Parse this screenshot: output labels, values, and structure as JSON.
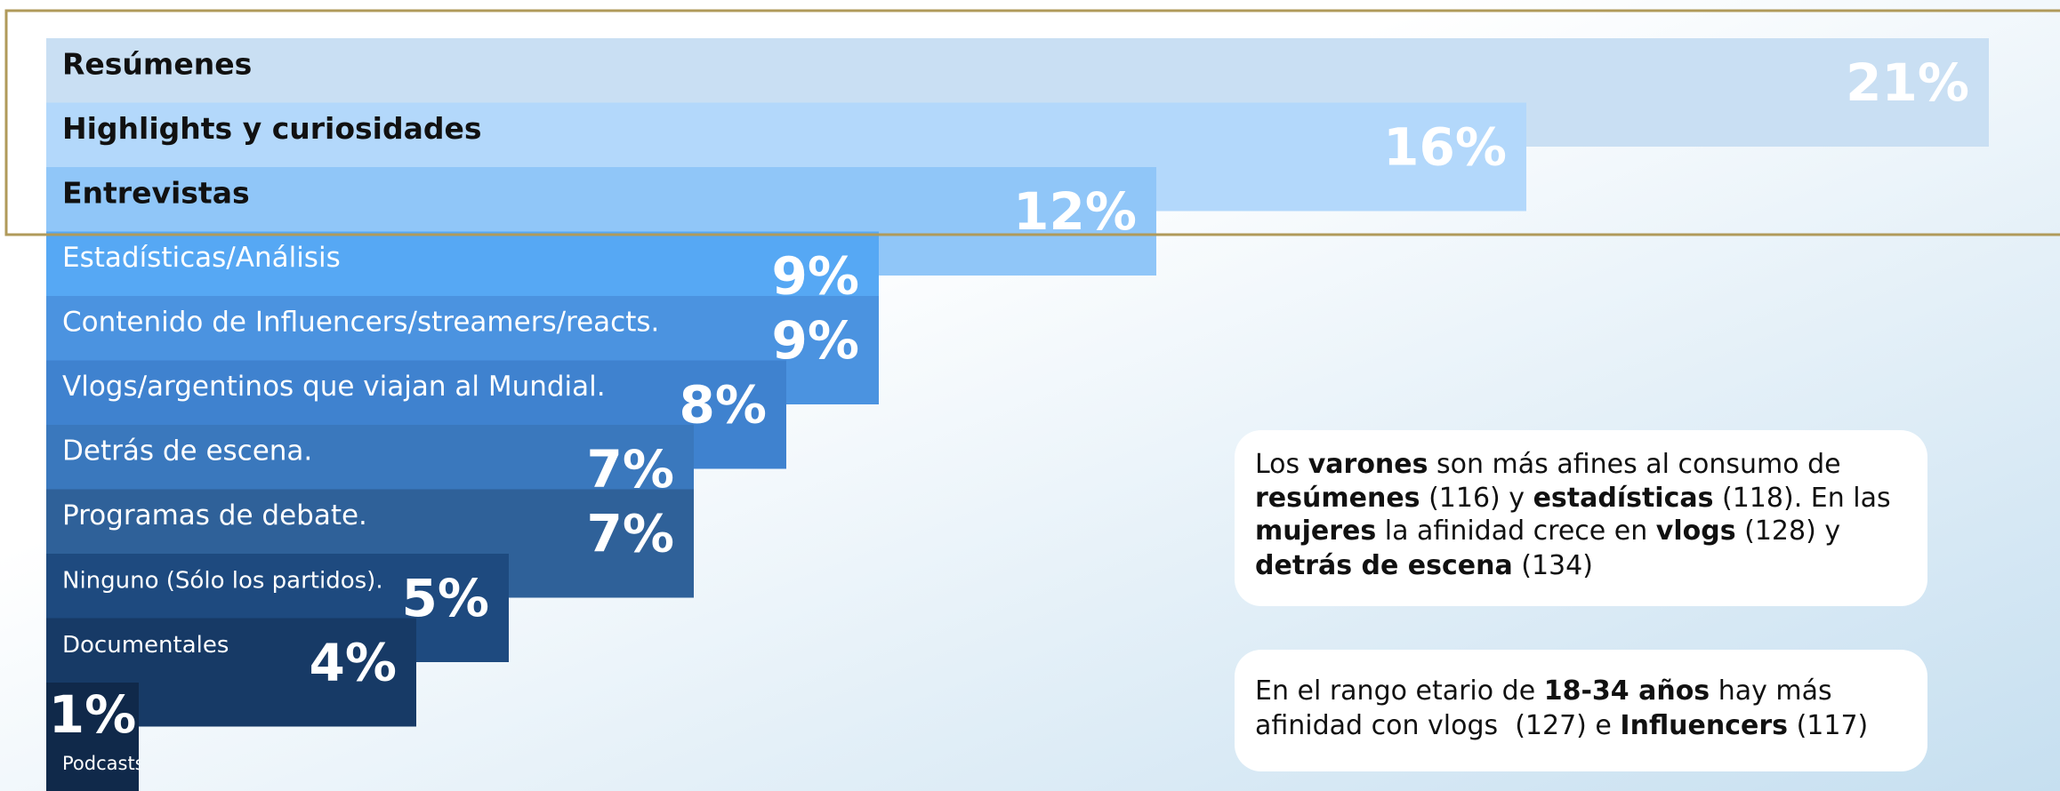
{
  "chart_data": {
    "type": "bar",
    "orientation": "horizontal",
    "categories": [
      "Resúmenes",
      "Highlights y curiosidades",
      "Entrevistas",
      "Estadísticas/Análisis",
      "Contenido de Influencers/streamers/reacts.",
      "Vlogs/argentinos que viajan al Mundial.",
      "Detrás de escena.",
      "Programas de debate.",
      "Ninguno (Sólo los partidos).",
      "Documentales",
      "Podcasts"
    ],
    "values": [
      21,
      16,
      12,
      9,
      9,
      8,
      7,
      7,
      5,
      4,
      1
    ],
    "value_labels": [
      "21%",
      "16%",
      "12%",
      "9%",
      "9%",
      "8%",
      "7%",
      "7%",
      "5%",
      "4%",
      "1%"
    ],
    "colors": [
      "#c9dff3",
      "#b3d8fb",
      "#90c6f8",
      "#56a8f4",
      "#4b93e0",
      "#3f82cf",
      "#3a78bd",
      "#2f6199",
      "#1e4a7f",
      "#173a66",
      "#10294a"
    ]
  },
  "notes": [
    {
      "lines": [
        [
          {
            "text": "Los "
          },
          {
            "text": "varones",
            "bold": true
          },
          {
            "text": " son más afines al consumo de"
          }
        ],
        [
          {
            "text": "resúmenes",
            "bold": true
          },
          {
            "text": " (116) y "
          },
          {
            "text": "estadísticas",
            "bold": true
          },
          {
            "text": " (118). En las"
          }
        ],
        [
          {
            "text": "mujeres",
            "bold": true
          },
          {
            "text": " la afinidad crece en "
          },
          {
            "text": "vlogs",
            "bold": true
          },
          {
            "text": " (128) y"
          }
        ],
        [
          {
            "text": "detrás de escena",
            "bold": true
          },
          {
            "text": " (134)"
          }
        ]
      ]
    },
    {
      "lines": [
        [
          {
            "text": "En el rango etario de "
          },
          {
            "text": "18-34 años",
            "bold": true
          },
          {
            "text": " hay más"
          }
        ],
        [
          {
            "text": "afinidad con vlogs  (127) e "
          },
          {
            "text": "Influencers",
            "bold": true
          },
          {
            "text": " (117)"
          }
        ]
      ]
    }
  ]
}
